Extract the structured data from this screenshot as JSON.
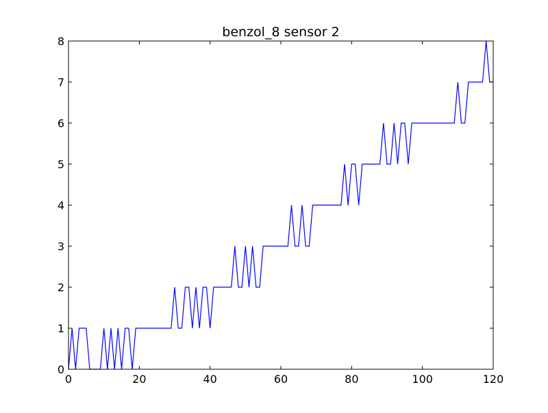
{
  "chart_data": {
    "type": "line",
    "title": "benzol_8 sensor 2",
    "xlabel": "",
    "ylabel": "",
    "xlim": [
      0,
      120
    ],
    "ylim": [
      0,
      8
    ],
    "xticks": [
      0,
      20,
      40,
      60,
      80,
      100,
      120
    ],
    "yticks": [
      0,
      1,
      2,
      3,
      4,
      5,
      6,
      7,
      8
    ],
    "grid": false,
    "series": [
      {
        "color": "#0000ff",
        "x": [
          0,
          1,
          2,
          3,
          4,
          5,
          6,
          7,
          8,
          9,
          10,
          11,
          12,
          13,
          14,
          15,
          16,
          17,
          18,
          19,
          20,
          21,
          22,
          23,
          24,
          25,
          26,
          27,
          28,
          29,
          30,
          31,
          32,
          33,
          34,
          35,
          36,
          37,
          38,
          39,
          40,
          41,
          42,
          43,
          44,
          45,
          46,
          47,
          48,
          49,
          50,
          51,
          52,
          53,
          54,
          55,
          56,
          57,
          58,
          59,
          60,
          61,
          62,
          63,
          64,
          65,
          66,
          67,
          68,
          69,
          70,
          71,
          72,
          73,
          74,
          75,
          76,
          77,
          78,
          79,
          80,
          81,
          82,
          83,
          84,
          85,
          86,
          87,
          88,
          89,
          90,
          91,
          92,
          93,
          94,
          95,
          96,
          97,
          98,
          99,
          100,
          101,
          102,
          103,
          104,
          105,
          106,
          107,
          108,
          109,
          110,
          111,
          112,
          113,
          114,
          115,
          116,
          117,
          118,
          119,
          120
        ],
        "y": [
          0,
          1,
          0,
          1,
          1,
          1,
          0,
          0,
          0,
          0,
          1,
          0,
          1,
          0,
          1,
          0,
          1,
          1,
          0,
          1,
          1,
          1,
          1,
          1,
          1,
          1,
          1,
          1,
          1,
          1,
          2,
          1,
          1,
          2,
          2,
          1,
          2,
          1,
          2,
          2,
          1,
          2,
          2,
          2,
          2,
          2,
          2,
          3,
          2,
          2,
          3,
          2,
          3,
          2,
          2,
          3,
          3,
          3,
          3,
          3,
          3,
          3,
          3,
          4,
          3,
          3,
          4,
          3,
          3,
          4,
          4,
          4,
          4,
          4,
          4,
          4,
          4,
          4,
          5,
          4,
          5,
          5,
          4,
          5,
          5,
          5,
          5,
          5,
          5,
          6,
          5,
          5,
          6,
          5,
          6,
          6,
          5,
          6,
          6,
          6,
          6,
          6,
          6,
          6,
          6,
          6,
          6,
          6,
          6,
          6,
          7,
          6,
          6,
          7,
          7,
          7,
          7,
          7,
          8,
          7,
          7
        ]
      }
    ]
  }
}
